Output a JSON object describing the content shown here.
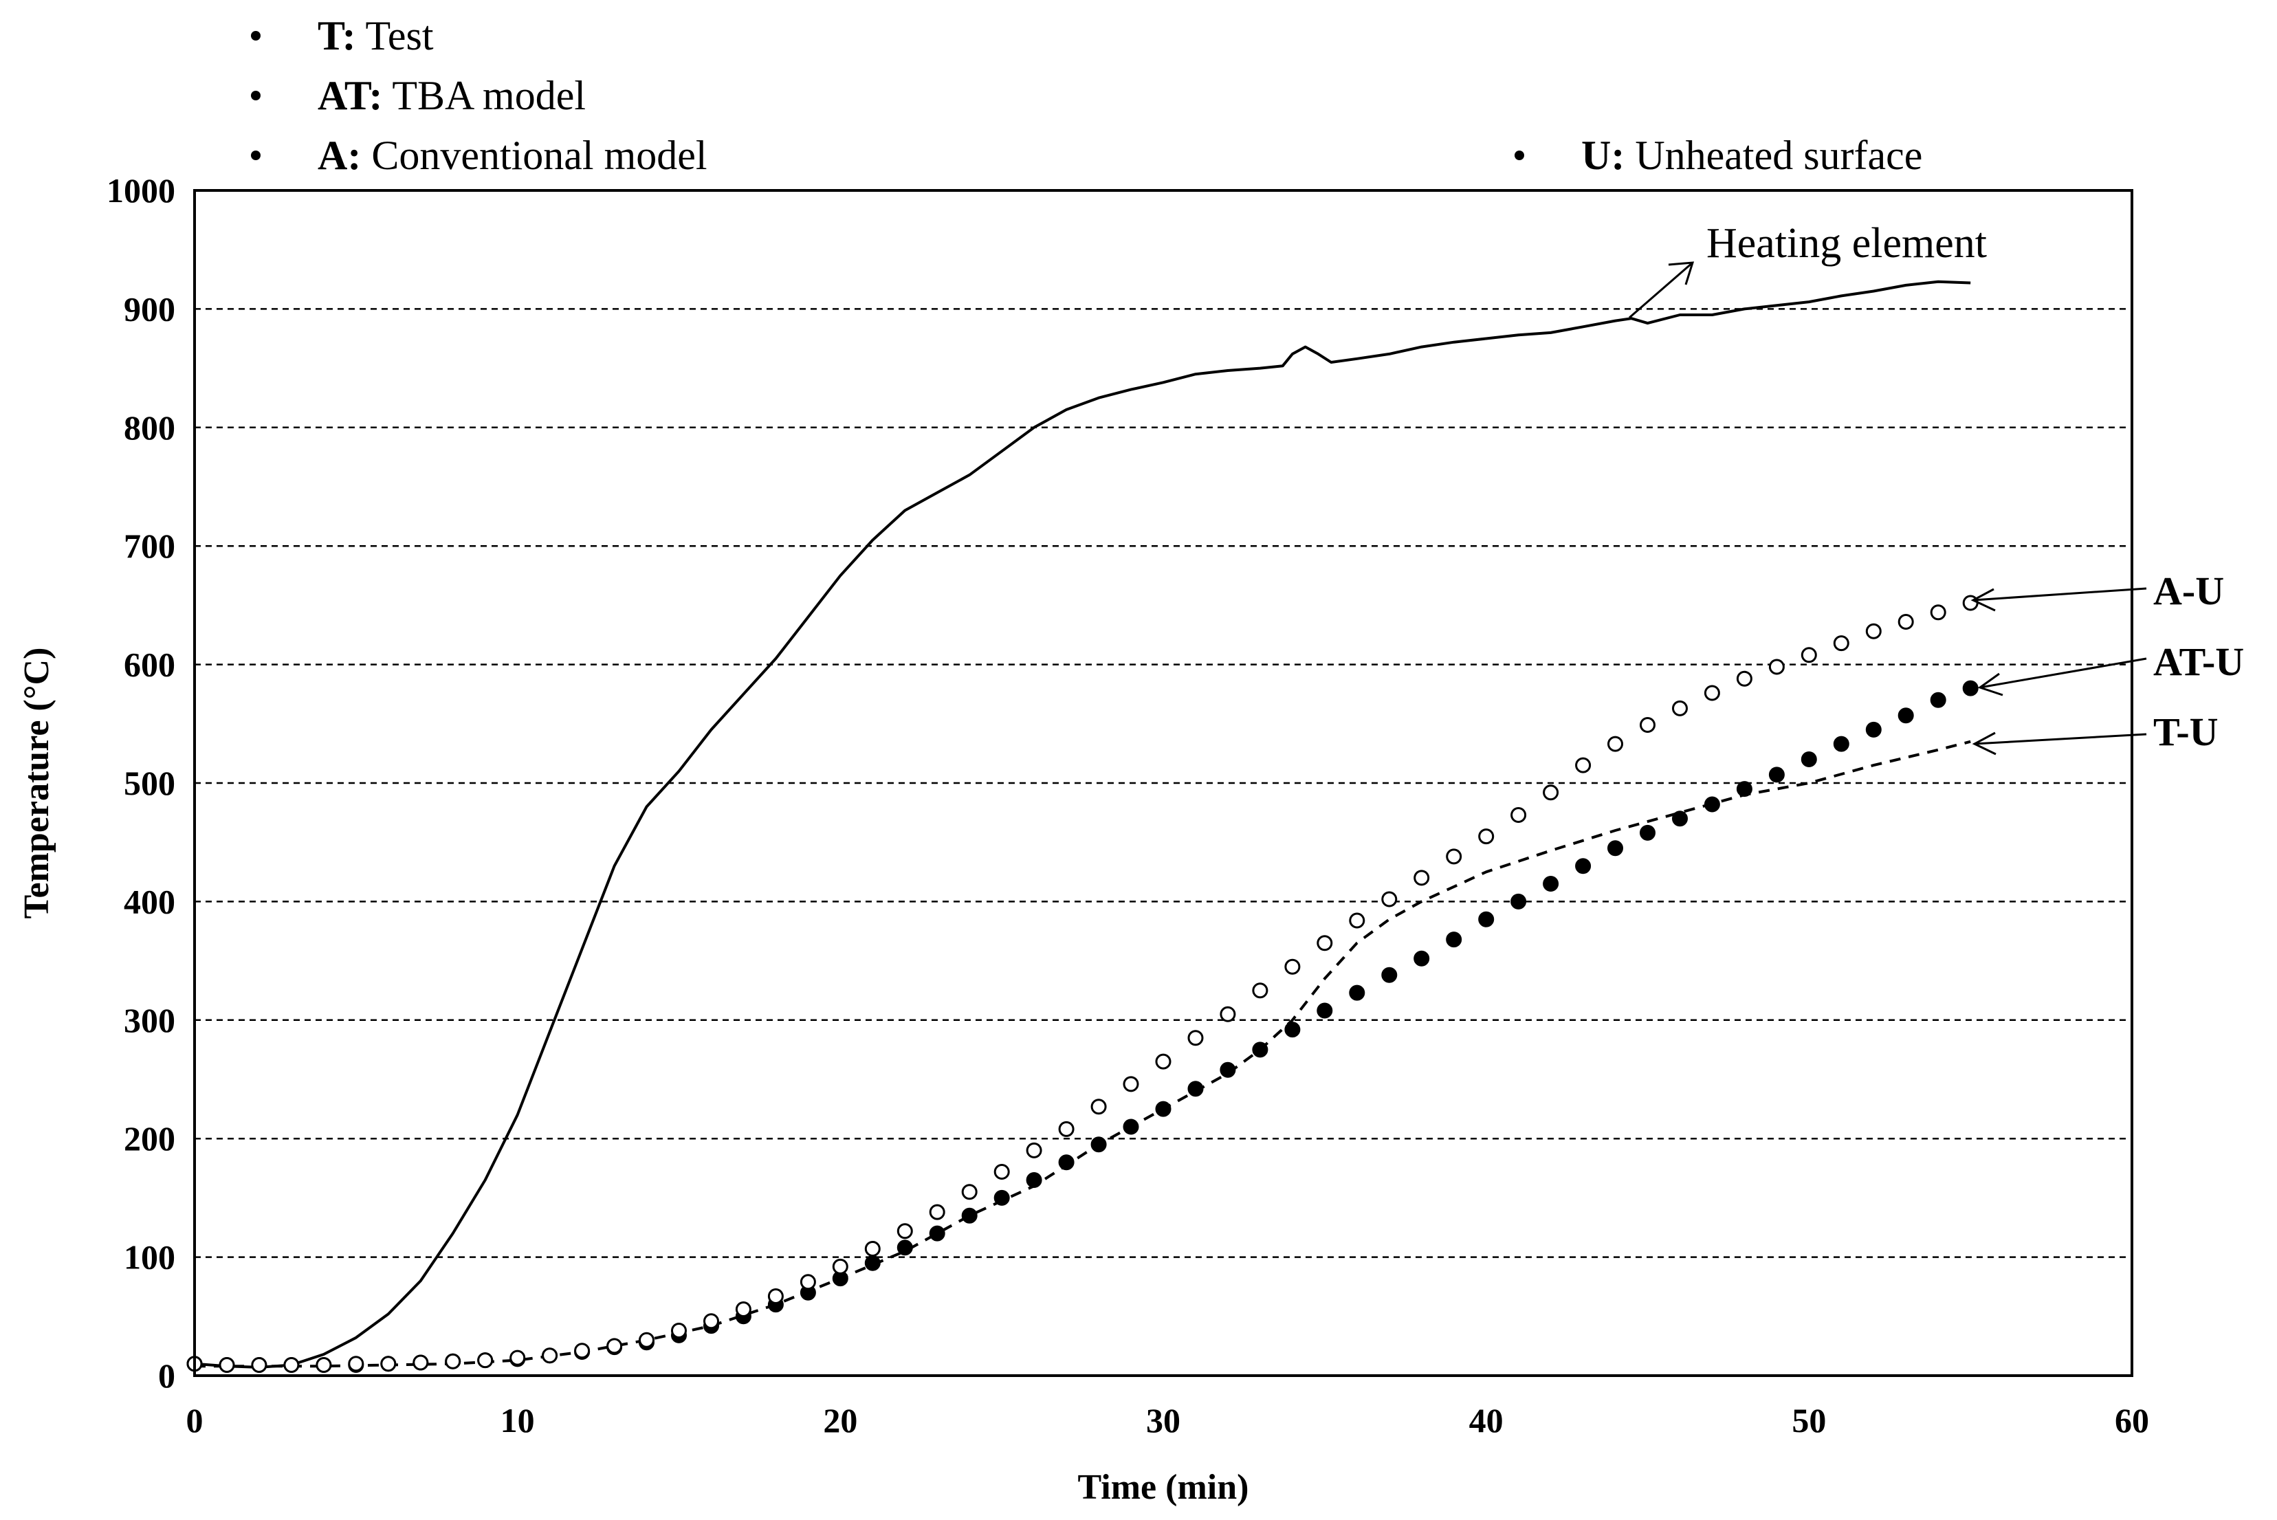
{
  "chart_data": {
    "type": "line",
    "title": "",
    "xlabel": "Time (min)",
    "ylabel": "Temperature (°C)",
    "xlim": [
      0,
      60
    ],
    "ylim": [
      0,
      1000
    ],
    "x_ticks": [
      "0",
      "10",
      "20",
      "30",
      "40",
      "50",
      "60"
    ],
    "y_ticks": [
      "0",
      "100",
      "200",
      "300",
      "400",
      "500",
      "600",
      "700",
      "800",
      "900",
      "1000"
    ],
    "grid": "horizontal dashed",
    "legend": [
      {
        "key": "T:",
        "text": " Test"
      },
      {
        "key": "AT:",
        "text": " TBA model"
      },
      {
        "key": "A:",
        "text": " Conventional model"
      },
      {
        "key": "U:",
        "text": " Unheated surface"
      }
    ],
    "series": [
      {
        "name": "Heating element",
        "label": "Heating element",
        "style": "solid",
        "points": [
          [
            0,
            10
          ],
          [
            1,
            8
          ],
          [
            2,
            7
          ],
          [
            3,
            9
          ],
          [
            4,
            18
          ],
          [
            5,
            32
          ],
          [
            6,
            52
          ],
          [
            7,
            80
          ],
          [
            8,
            120
          ],
          [
            9,
            165
          ],
          [
            10,
            220
          ],
          [
            11,
            290
          ],
          [
            12,
            360
          ],
          [
            13,
            430
          ],
          [
            14,
            480
          ],
          [
            15,
            510
          ],
          [
            16,
            545
          ],
          [
            17,
            575
          ],
          [
            18,
            605
          ],
          [
            19,
            640
          ],
          [
            20,
            675
          ],
          [
            21,
            705
          ],
          [
            22,
            730
          ],
          [
            23,
            745
          ],
          [
            24,
            760
          ],
          [
            25,
            780
          ],
          [
            26,
            800
          ],
          [
            27,
            815
          ],
          [
            28,
            825
          ],
          [
            29,
            832
          ],
          [
            30,
            838
          ],
          [
            31,
            845
          ],
          [
            32,
            848
          ],
          [
            33,
            850
          ],
          [
            33.7,
            852
          ],
          [
            34,
            862
          ],
          [
            34.4,
            868
          ],
          [
            34.8,
            862
          ],
          [
            35.2,
            855
          ],
          [
            36,
            858
          ],
          [
            37,
            862
          ],
          [
            38,
            868
          ],
          [
            39,
            872
          ],
          [
            40,
            875
          ],
          [
            41,
            878
          ],
          [
            42,
            880
          ],
          [
            43,
            885
          ],
          [
            44,
            890
          ],
          [
            44.5,
            892
          ],
          [
            45,
            888
          ],
          [
            46,
            895
          ],
          [
            47,
            895
          ],
          [
            48,
            900
          ],
          [
            49,
            903
          ],
          [
            50,
            906
          ],
          [
            51,
            911
          ],
          [
            52,
            915
          ],
          [
            53,
            920
          ],
          [
            54,
            923
          ],
          [
            55,
            922
          ]
        ]
      },
      {
        "name": "T-U",
        "label": "T-U",
        "style": "dashed",
        "points": [
          [
            0,
            8
          ],
          [
            2,
            8
          ],
          [
            4,
            8
          ],
          [
            6,
            9
          ],
          [
            8,
            10
          ],
          [
            10,
            13
          ],
          [
            12,
            20
          ],
          [
            14,
            30
          ],
          [
            16,
            42
          ],
          [
            18,
            60
          ],
          [
            20,
            82
          ],
          [
            22,
            105
          ],
          [
            24,
            135
          ],
          [
            26,
            160
          ],
          [
            28,
            195
          ],
          [
            30,
            225
          ],
          [
            32,
            255
          ],
          [
            33,
            275
          ],
          [
            34,
            300
          ],
          [
            35,
            335
          ],
          [
            36,
            365
          ],
          [
            37,
            385
          ],
          [
            38,
            400
          ],
          [
            40,
            425
          ],
          [
            42,
            443
          ],
          [
            44,
            460
          ],
          [
            46,
            475
          ],
          [
            48,
            490
          ],
          [
            50,
            500
          ],
          [
            52,
            515
          ],
          [
            54,
            528
          ],
          [
            55,
            535
          ]
        ]
      },
      {
        "name": "AT-U",
        "label": "AT-U",
        "style": "filled-circles",
        "points": [
          [
            0,
            10
          ],
          [
            1,
            9
          ],
          [
            2,
            9
          ],
          [
            3,
            9
          ],
          [
            4,
            9
          ],
          [
            5,
            9
          ],
          [
            6,
            10
          ],
          [
            7,
            11
          ],
          [
            8,
            12
          ],
          [
            9,
            13
          ],
          [
            10,
            14
          ],
          [
            11,
            17
          ],
          [
            12,
            20
          ],
          [
            13,
            24
          ],
          [
            14,
            28
          ],
          [
            15,
            34
          ],
          [
            16,
            42
          ],
          [
            17,
            50
          ],
          [
            18,
            60
          ],
          [
            19,
            70
          ],
          [
            20,
            82
          ],
          [
            21,
            95
          ],
          [
            22,
            108
          ],
          [
            23,
            120
          ],
          [
            24,
            135
          ],
          [
            25,
            150
          ],
          [
            26,
            165
          ],
          [
            27,
            180
          ],
          [
            28,
            195
          ],
          [
            29,
            210
          ],
          [
            30,
            225
          ],
          [
            31,
            242
          ],
          [
            32,
            258
          ],
          [
            33,
            275
          ],
          [
            34,
            292
          ],
          [
            35,
            308
          ],
          [
            36,
            323
          ],
          [
            37,
            338
          ],
          [
            38,
            352
          ],
          [
            39,
            368
          ],
          [
            40,
            385
          ],
          [
            41,
            400
          ],
          [
            42,
            415
          ],
          [
            43,
            430
          ],
          [
            44,
            445
          ],
          [
            45,
            458
          ],
          [
            46,
            470
          ],
          [
            47,
            482
          ],
          [
            48,
            495
          ],
          [
            49,
            507
          ],
          [
            50,
            520
          ],
          [
            51,
            533
          ],
          [
            52,
            545
          ],
          [
            53,
            557
          ],
          [
            54,
            570
          ],
          [
            55,
            580
          ]
        ]
      },
      {
        "name": "A-U",
        "label": "A-U",
        "style": "open-circles",
        "points": [
          [
            0,
            10
          ],
          [
            1,
            9
          ],
          [
            2,
            9
          ],
          [
            3,
            9
          ],
          [
            4,
            9
          ],
          [
            5,
            10
          ],
          [
            6,
            10
          ],
          [
            7,
            11
          ],
          [
            8,
            12
          ],
          [
            9,
            13
          ],
          [
            10,
            15
          ],
          [
            11,
            17
          ],
          [
            12,
            21
          ],
          [
            13,
            25
          ],
          [
            14,
            30
          ],
          [
            15,
            38
          ],
          [
            16,
            46
          ],
          [
            17,
            56
          ],
          [
            18,
            67
          ],
          [
            19,
            79
          ],
          [
            20,
            92
          ],
          [
            21,
            107
          ],
          [
            22,
            122
          ],
          [
            23,
            138
          ],
          [
            24,
            155
          ],
          [
            25,
            172
          ],
          [
            26,
            190
          ],
          [
            27,
            208
          ],
          [
            28,
            227
          ],
          [
            29,
            246
          ],
          [
            30,
            265
          ],
          [
            31,
            285
          ],
          [
            32,
            305
          ],
          [
            33,
            325
          ],
          [
            34,
            345
          ],
          [
            35,
            365
          ],
          [
            36,
            384
          ],
          [
            37,
            402
          ],
          [
            38,
            420
          ],
          [
            39,
            438
          ],
          [
            40,
            455
          ],
          [
            41,
            473
          ],
          [
            42,
            492
          ],
          [
            43,
            515
          ],
          [
            44,
            533
          ],
          [
            45,
            549
          ],
          [
            46,
            563
          ],
          [
            47,
            576
          ],
          [
            48,
            588
          ],
          [
            49,
            598
          ],
          [
            50,
            608
          ],
          [
            51,
            618
          ],
          [
            52,
            628
          ],
          [
            53,
            636
          ],
          [
            54,
            644
          ],
          [
            55,
            652
          ]
        ]
      }
    ]
  }
}
